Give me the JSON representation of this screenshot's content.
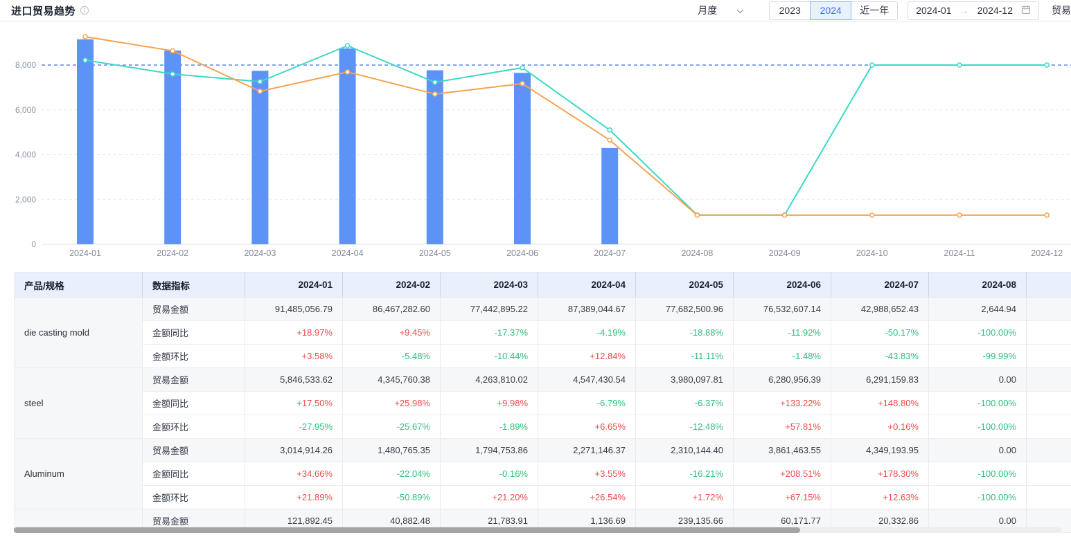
{
  "header": {
    "title": "进口贸易趋势",
    "period_select": {
      "value": "月度"
    },
    "year_buttons": [
      {
        "label": "2023",
        "active": false
      },
      {
        "label": "2024",
        "active": true
      },
      {
        "label": "近一年",
        "active": false
      }
    ],
    "date_range": {
      "start": "2024-01",
      "arrow": "→",
      "end": "2024-12"
    },
    "partial_right_text": "贸易"
  },
  "chart_data": {
    "type": "bar+line",
    "x": [
      "2024-01",
      "2024-02",
      "2024-03",
      "2024-04",
      "2024-05",
      "2024-06",
      "2024-07",
      "2024-08",
      "2024-09",
      "2024-10",
      "2024-11",
      "2024-12"
    ],
    "y_ticks": [
      "0",
      "2,000",
      "4,000",
      "6,000",
      "8,000"
    ],
    "y_tick_values": [
      0,
      2000,
      4000,
      6000,
      8000
    ],
    "ylim": [
      0,
      10000
    ],
    "ref_line": 8000,
    "grid": true,
    "legend_position": "none",
    "colors": {
      "bar": "#5d93f7",
      "line_orange": "#f7a350",
      "line_teal": "#3cd8c6",
      "ref_line": "#5c85e8"
    },
    "series": [
      {
        "name": "trade-amount-bar",
        "type": "bar",
        "values": [
          9148.51,
          8646.73,
          7744.29,
          8738.9,
          7768.25,
          7653.26,
          4298.87,
          0.26,
          0,
          0,
          0,
          0
        ]
      },
      {
        "name": "trend-line-orange",
        "type": "line",
        "values": [
          9265,
          8635,
          6830,
          7690,
          6705,
          7170,
          4650,
          1300,
          1300,
          1300,
          1300,
          1300
        ]
      },
      {
        "name": "trend-line-teal",
        "type": "line",
        "values": [
          8220,
          7600,
          7260,
          8865,
          7230,
          7880,
          5100,
          1310,
          1310,
          8000,
          8000,
          8000
        ]
      }
    ]
  },
  "table": {
    "col1_header": "产品/规格",
    "col2_header": "数据指标",
    "months": [
      "2024-01",
      "2024-02",
      "2024-03",
      "2024-04",
      "2024-05",
      "2024-06",
      "2024-07",
      "2024-08"
    ],
    "groups": [
      {
        "product": "die casting mold",
        "rows": [
          {
            "metric": "贸易金额",
            "kind": "amount",
            "values": [
              "91,485,056.79",
              "86,467,282.60",
              "77,442,895.22",
              "87,389,044.67",
              "77,682,500.96",
              "76,532,607.14",
              "42,988,652.43",
              "2,644.94"
            ]
          },
          {
            "metric": "金额同比",
            "kind": "pct",
            "values": [
              "+18.97%",
              "+9.45%",
              "-17.37%",
              "-4.19%",
              "-18.88%",
              "-11.92%",
              "-50.17%",
              "-100.00%"
            ]
          },
          {
            "metric": "金额环比",
            "kind": "pct",
            "values": [
              "+3.58%",
              "-5.48%",
              "-10.44%",
              "+12.84%",
              "-11.11%",
              "-1.48%",
              "-43.83%",
              "-99.99%"
            ]
          }
        ]
      },
      {
        "product": "steel",
        "rows": [
          {
            "metric": "贸易金额",
            "kind": "amount",
            "values": [
              "5,846,533.62",
              "4,345,760.38",
              "4,263,810.02",
              "4,547,430.54",
              "3,980,097.81",
              "6,280,956.39",
              "6,291,159.83",
              "0.00"
            ]
          },
          {
            "metric": "金额同比",
            "kind": "pct",
            "values": [
              "+17.50%",
              "+25.98%",
              "+9.98%",
              "-6.79%",
              "-6.37%",
              "+133.22%",
              "+148.80%",
              "-100.00%"
            ]
          },
          {
            "metric": "金额环比",
            "kind": "pct",
            "values": [
              "-27.95%",
              "-25.67%",
              "-1.89%",
              "+6.65%",
              "-12.48%",
              "+57.81%",
              "+0.16%",
              "-100.00%"
            ]
          }
        ]
      },
      {
        "product": "Aluminum",
        "rows": [
          {
            "metric": "贸易金额",
            "kind": "amount",
            "values": [
              "3,014,914.26",
              "1,480,765.35",
              "1,794,753.86",
              "2,271,146.37",
              "2,310,144.40",
              "3,861,463.55",
              "4,349,193.95",
              "0.00"
            ]
          },
          {
            "metric": "金额同比",
            "kind": "pct",
            "values": [
              "+34.66%",
              "-22.04%",
              "-0.16%",
              "+3.55%",
              "-16.21%",
              "+208.51%",
              "+178.30%",
              "-100.00%"
            ]
          },
          {
            "metric": "金额环比",
            "kind": "pct",
            "values": [
              "+21.89%",
              "-50.89%",
              "+21.20%",
              "+26.54%",
              "+1.72%",
              "+67.15%",
              "+12.63%",
              "-100.00%"
            ]
          }
        ]
      },
      {
        "product": "",
        "rows": [
          {
            "metric": "贸易金额",
            "kind": "amount",
            "values": [
              "121,892.45",
              "40,882.48",
              "21,783.91",
              "1,136.69",
              "239,135.66",
              "60,171.77",
              "20,332.86",
              "0.00"
            ]
          }
        ]
      }
    ]
  }
}
